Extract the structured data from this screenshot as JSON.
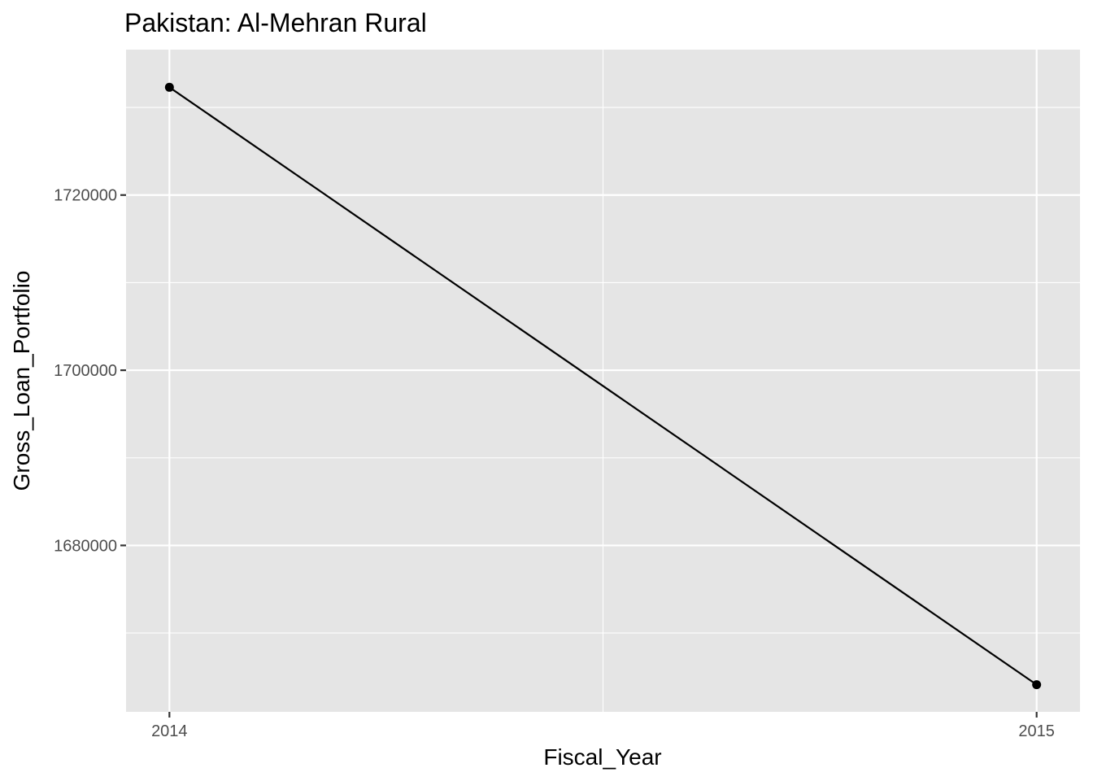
{
  "chart_data": {
    "type": "line",
    "title": "Pakistan:  Al-Mehran Rural",
    "xlabel": "Fiscal_Year",
    "ylabel": "Gross_Loan_Portfolio",
    "x": [
      2014,
      2015
    ],
    "series": [
      {
        "values": [
          1732300,
          1664100
        ]
      }
    ],
    "x_ticks": [
      2014,
      2015
    ],
    "x_tick_labels": [
      "2014",
      "2015"
    ],
    "y_ticks": [
      1680000,
      1700000,
      1720000
    ],
    "y_tick_labels": [
      "1680000",
      "1700000",
      "1720000"
    ],
    "xlim": [
      2013.95,
      2015.05
    ],
    "ylim": [
      1661000,
      1736600
    ],
    "grid": true,
    "legend": "none",
    "show_points": true,
    "colors": {
      "panel_background": "#e5e5e5",
      "grid": "#ffffff",
      "line": "#000000",
      "point": "#000000",
      "tick_text": "#4d4d4d",
      "tick_mark": "#333333"
    }
  }
}
